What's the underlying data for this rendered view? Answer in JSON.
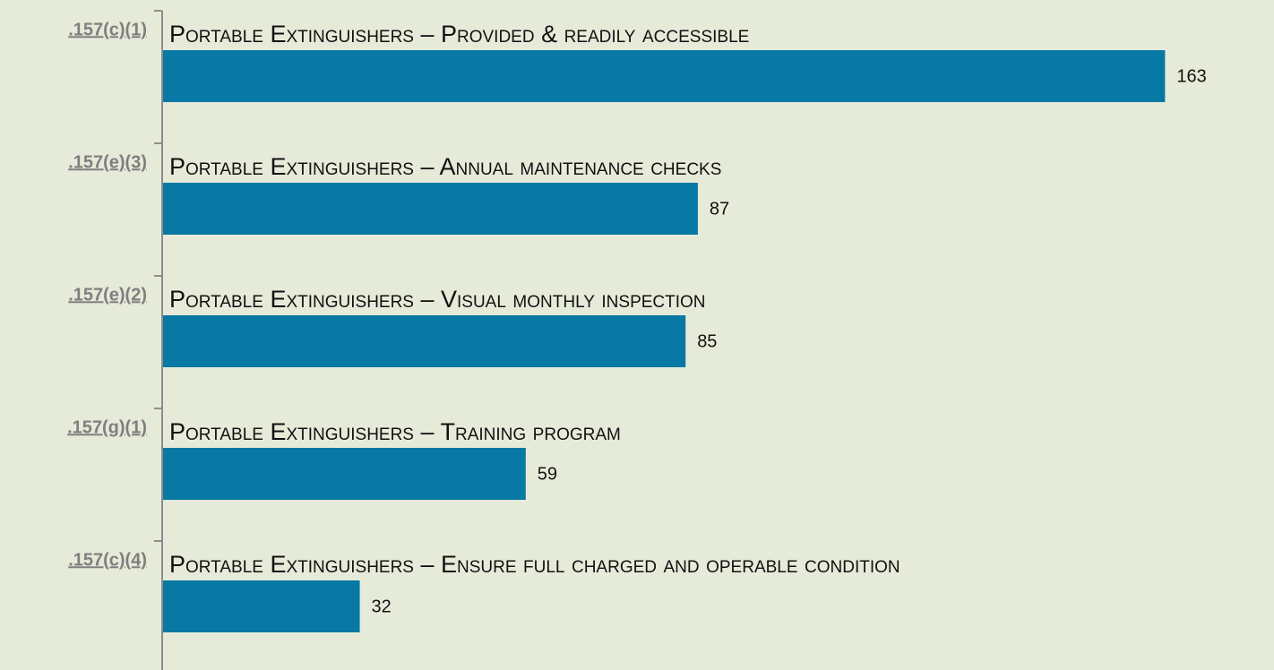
{
  "chart_data": {
    "type": "bar",
    "orientation": "horizontal",
    "categories": [
      ".157(c)(1)",
      ".157(e)(3)",
      ".157(e)(2)",
      ".157(g)(1)",
      ".157(c)(4)"
    ],
    "descriptions": [
      "Portable Extinguishers – Provided & readily accessible",
      "Portable Extinguishers – Annual maintenance checks",
      "Portable Extinguishers – Visual monthly inspection",
      "Portable Extinguishers – Training program",
      "Portable Extinguishers – Ensure full charged and operable condition"
    ],
    "values": [
      163,
      87,
      85,
      59,
      32
    ],
    "color": "#0878a4",
    "xlim": [
      0,
      180
    ]
  }
}
